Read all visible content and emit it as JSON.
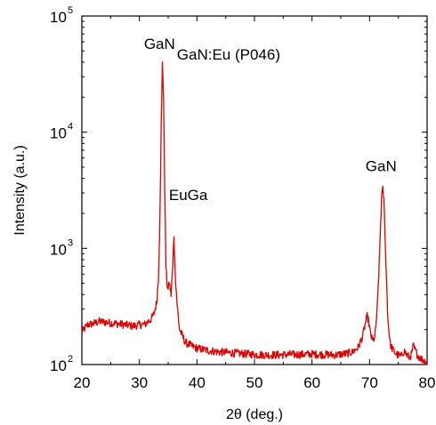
{
  "chart_data": {
    "type": "line",
    "title": "",
    "xlabel": "2θ (deg.)",
    "ylabel": "Intensity (a.u.)",
    "xlim": [
      20,
      80
    ],
    "ylim": [
      100,
      100000
    ],
    "yscale": "log",
    "grid": false,
    "legend": null,
    "color": "#dd0000",
    "x_ticks": [
      "20",
      "30",
      "40",
      "50",
      "60",
      "70",
      "80"
    ],
    "y_ticks": [
      {
        "base": "10",
        "exp": "2"
      },
      {
        "base": "10",
        "exp": "3"
      },
      {
        "base": "10",
        "exp": "4"
      },
      {
        "base": "10",
        "exp": "5"
      }
    ],
    "annotations": [
      {
        "text": "GaN:Eu (P046)",
        "x": 45.5,
        "y": 42000
      },
      {
        "text": "GaN",
        "x": 33.5,
        "y": 52000
      },
      {
        "text": "EuGa",
        "x": 38.5,
        "y": 2600
      },
      {
        "text": "GaN",
        "x": 72.0,
        "y": 4600
      }
    ],
    "series": [
      {
        "x": [
          20,
          21,
          22,
          23,
          24,
          25,
          26,
          27,
          28,
          29,
          30,
          31,
          31.5,
          32,
          32.5,
          33,
          33.3,
          33.6,
          33.8,
          34.0,
          34.2,
          34.4,
          34.6,
          34.8,
          35.0,
          35.2,
          35.5,
          35.8,
          36.0,
          36.2,
          36.5,
          36.8,
          37.0,
          37.5,
          38,
          39,
          40,
          42,
          44,
          46,
          48,
          50,
          52,
          54,
          56,
          58,
          60,
          62,
          64,
          66,
          67,
          68,
          68.8,
          69.3,
          69.6,
          69.8,
          70.1,
          70.5,
          70.9,
          71.3,
          71.6,
          71.9,
          72.1,
          72.3,
          72.5,
          72.7,
          72.9,
          73.2,
          73.6,
          74.0,
          74.5,
          75,
          75.5,
          76,
          76.5,
          77,
          77.3,
          77.6,
          78,
          78.5,
          79,
          79.5,
          80
        ],
        "y": [
          190,
          220,
          225,
          235,
          232,
          228,
          225,
          222,
          218,
          215,
          220,
          222,
          235,
          245,
          270,
          340,
          550,
          2200,
          12000,
          42000,
          18000,
          3500,
          700,
          500,
          440,
          510,
          400,
          700,
          1300,
          650,
          360,
          240,
          200,
          175,
          155,
          145,
          138,
          132,
          128,
          126,
          124,
          122,
          121,
          121,
          122,
          122,
          123,
          122,
          121,
          124,
          128,
          140,
          175,
          230,
          262,
          240,
          190,
          160,
          170,
          280,
          600,
          1500,
          2800,
          3200,
          2600,
          1300,
          600,
          240,
          150,
          135,
          125,
          120,
          118,
          132,
          120,
          115,
          122,
          145,
          130,
          118,
          112,
          108,
          105
        ]
      }
    ]
  }
}
